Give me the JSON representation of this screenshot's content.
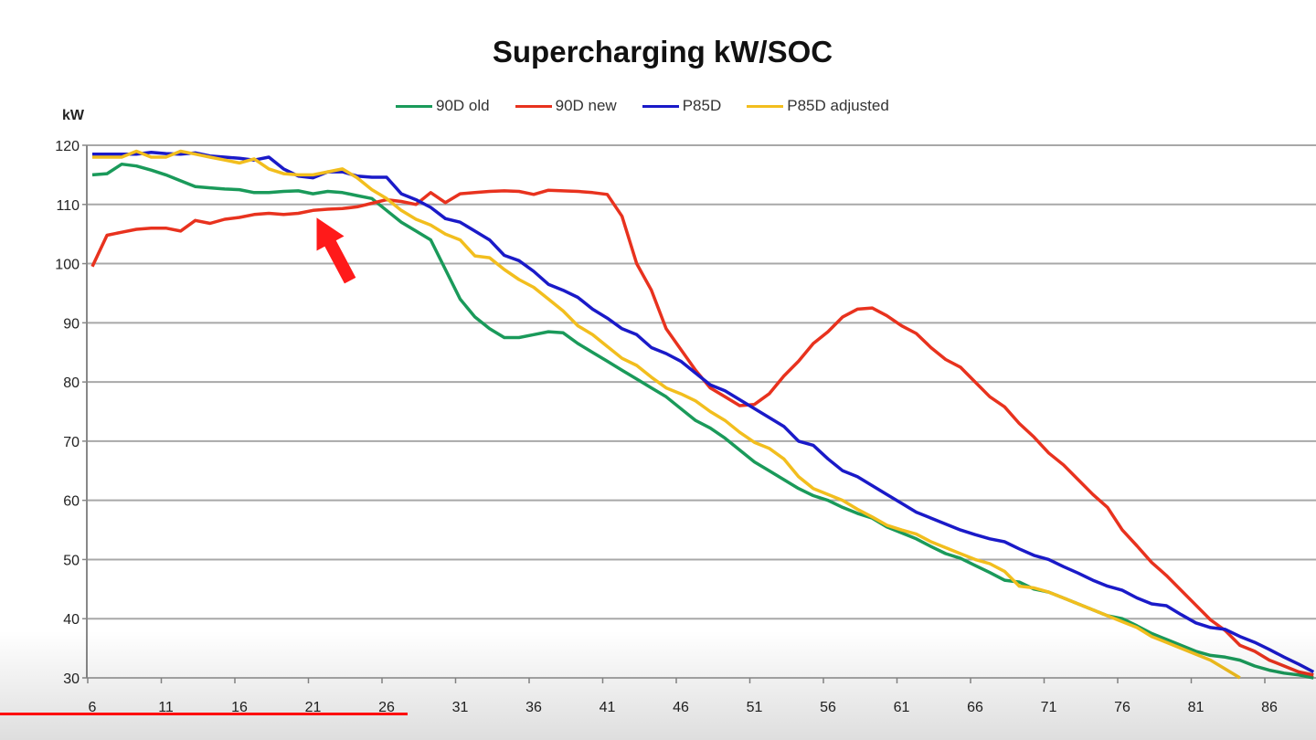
{
  "chart_data": {
    "type": "line",
    "title": "Supercharging kW/SOC",
    "ylabel": "kW",
    "xlabel": "",
    "xlim": [
      6,
      89
    ],
    "ylim": [
      30,
      120
    ],
    "x_ticks": [
      "6",
      "11",
      "16",
      "21",
      "26",
      "31",
      "36",
      "41",
      "46",
      "51",
      "56",
      "61",
      "66",
      "71",
      "76",
      "81",
      "86"
    ],
    "y_ticks": [
      "120",
      "110",
      "100",
      "90",
      "80",
      "70",
      "60",
      "50",
      "40",
      "30"
    ],
    "grid": "horizontal",
    "legend_position": "top-center",
    "x": [
      6,
      7,
      8,
      9,
      10,
      11,
      12,
      13,
      14,
      15,
      16,
      17,
      18,
      19,
      20,
      21,
      22,
      23,
      24,
      25,
      26,
      27,
      28,
      29,
      30,
      31,
      32,
      33,
      34,
      35,
      36,
      37,
      38,
      39,
      40,
      41,
      42,
      43,
      44,
      45,
      46,
      47,
      48,
      49,
      50,
      51,
      52,
      53,
      54,
      55,
      56,
      57,
      58,
      59,
      60,
      61,
      62,
      63,
      64,
      65,
      66,
      67,
      68,
      69,
      70,
      71,
      72,
      73,
      74,
      75,
      76,
      77,
      78,
      79,
      80,
      81,
      82,
      83,
      84,
      85,
      86,
      87,
      88,
      89
    ],
    "series": [
      {
        "name": "90D old",
        "color": "#1a9a5a",
        "values": [
          115,
          115.2,
          116.8,
          116.5,
          115.8,
          115,
          114,
          113,
          112.8,
          112.6,
          112.5,
          112,
          112,
          112.2,
          112.3,
          111.8,
          112.2,
          112,
          111.5,
          111,
          109,
          107,
          105.5,
          104,
          99,
          94,
          91,
          89,
          87.5,
          87.5,
          88,
          88.5,
          88.3,
          86.5,
          85,
          83.5,
          82,
          80.5,
          79,
          77.5,
          75.5,
          73.5,
          72.2,
          70.5,
          68.5,
          66.5,
          65,
          63.5,
          62,
          60.8,
          60,
          58.8,
          57.8,
          57,
          55.5,
          54.5,
          53.5,
          52.2,
          51,
          50.2,
          49,
          47.8,
          46.5,
          46.2,
          45,
          44.5,
          43.5,
          42.5,
          41.5,
          40.5,
          40,
          38.8,
          37.5,
          36.5,
          35.5,
          34.5,
          33.8,
          33.5,
          33,
          32,
          31.3,
          30.8,
          30.5,
          30
        ]
      },
      {
        "name": "90D new",
        "color": "#e8321e",
        "values": [
          99.5,
          104.8,
          105.3,
          105.8,
          106,
          106,
          105.5,
          107.3,
          106.8,
          107.5,
          107.8,
          108.3,
          108.5,
          108.3,
          108.5,
          109,
          109.2,
          109.3,
          109.6,
          110.2,
          110.8,
          110.5,
          110,
          112,
          110.3,
          111.8,
          112,
          112.2,
          112.3,
          112.2,
          111.7,
          112.4,
          112.3,
          112.2,
          112,
          111.7,
          108,
          100,
          95.5,
          89,
          85.5,
          82,
          79,
          77.5,
          76,
          76.2,
          78,
          81,
          83.5,
          86.5,
          88.5,
          91,
          92.3,
          92.5,
          91.2,
          89.5,
          88.2,
          85.8,
          83.8,
          82.5,
          80,
          77.5,
          75.8,
          73,
          70.7,
          68,
          66,
          63.5,
          61,
          58.8,
          55,
          52.3,
          49.5,
          47.3,
          44.8,
          42.3,
          39.8,
          38,
          35.5,
          34.5,
          33,
          32,
          31,
          30.5
        ]
      },
      {
        "name": "P85D",
        "color": "#1a1ac8",
        "values": [
          118.5,
          118.5,
          118.5,
          118.5,
          118.8,
          118.6,
          118.5,
          118.7,
          118.2,
          118,
          117.8,
          117.5,
          118,
          116,
          114.8,
          114.5,
          115.5,
          115.5,
          114.8,
          114.6,
          114.6,
          111.8,
          110.8,
          109.5,
          107.6,
          107,
          105.5,
          104,
          101.4,
          100.5,
          98.7,
          96.5,
          95.5,
          94.3,
          92.3,
          90.8,
          89,
          88,
          85.8,
          84.8,
          83.5,
          81.5,
          79.5,
          78.5,
          77,
          75.5,
          74,
          72.5,
          70,
          69.3,
          67,
          65,
          64,
          62.5,
          61,
          59.5,
          58,
          57,
          56,
          55,
          54.2,
          53.5,
          53,
          51.8,
          50.7,
          50,
          48.8,
          47.7,
          46.5,
          45.5,
          44.8,
          43.5,
          42.5,
          42.2,
          40.7,
          39.3,
          38.5,
          38.2,
          37,
          36,
          34.8,
          33.5,
          32.3,
          31
        ]
      },
      {
        "name": "P85D adjusted",
        "color": "#f2be1e",
        "values": [
          118,
          118,
          118,
          119,
          118,
          118,
          119,
          118.5,
          118,
          117.5,
          117,
          117.7,
          116,
          115.2,
          115,
          115,
          115.5,
          116,
          114.5,
          112.5,
          111,
          109,
          107.5,
          106.5,
          105,
          104,
          101.3,
          101,
          99,
          97.3,
          96,
          94,
          92,
          89.5,
          88,
          86,
          84,
          82.8,
          80.8,
          79,
          78,
          76.8,
          75,
          73.5,
          71.5,
          69.8,
          68.8,
          67,
          64,
          62,
          61,
          60,
          58.5,
          57.2,
          55.8,
          55,
          54.3,
          53,
          52,
          51,
          50,
          49.3,
          48,
          45.5,
          45.2,
          44.5,
          43.5,
          42.5,
          41.5,
          40.5,
          39.5,
          38.5,
          37,
          36,
          35,
          34,
          33,
          31.5,
          30,
          null,
          null,
          null,
          null,
          null
        ]
      }
    ],
    "annotations": [
      {
        "type": "arrow",
        "color": "#ff1a1a",
        "points_to": {
          "x": 21,
          "y": 109
        }
      }
    ]
  },
  "video": {
    "progress": 0.31,
    "progress_color": "#ff0000"
  }
}
